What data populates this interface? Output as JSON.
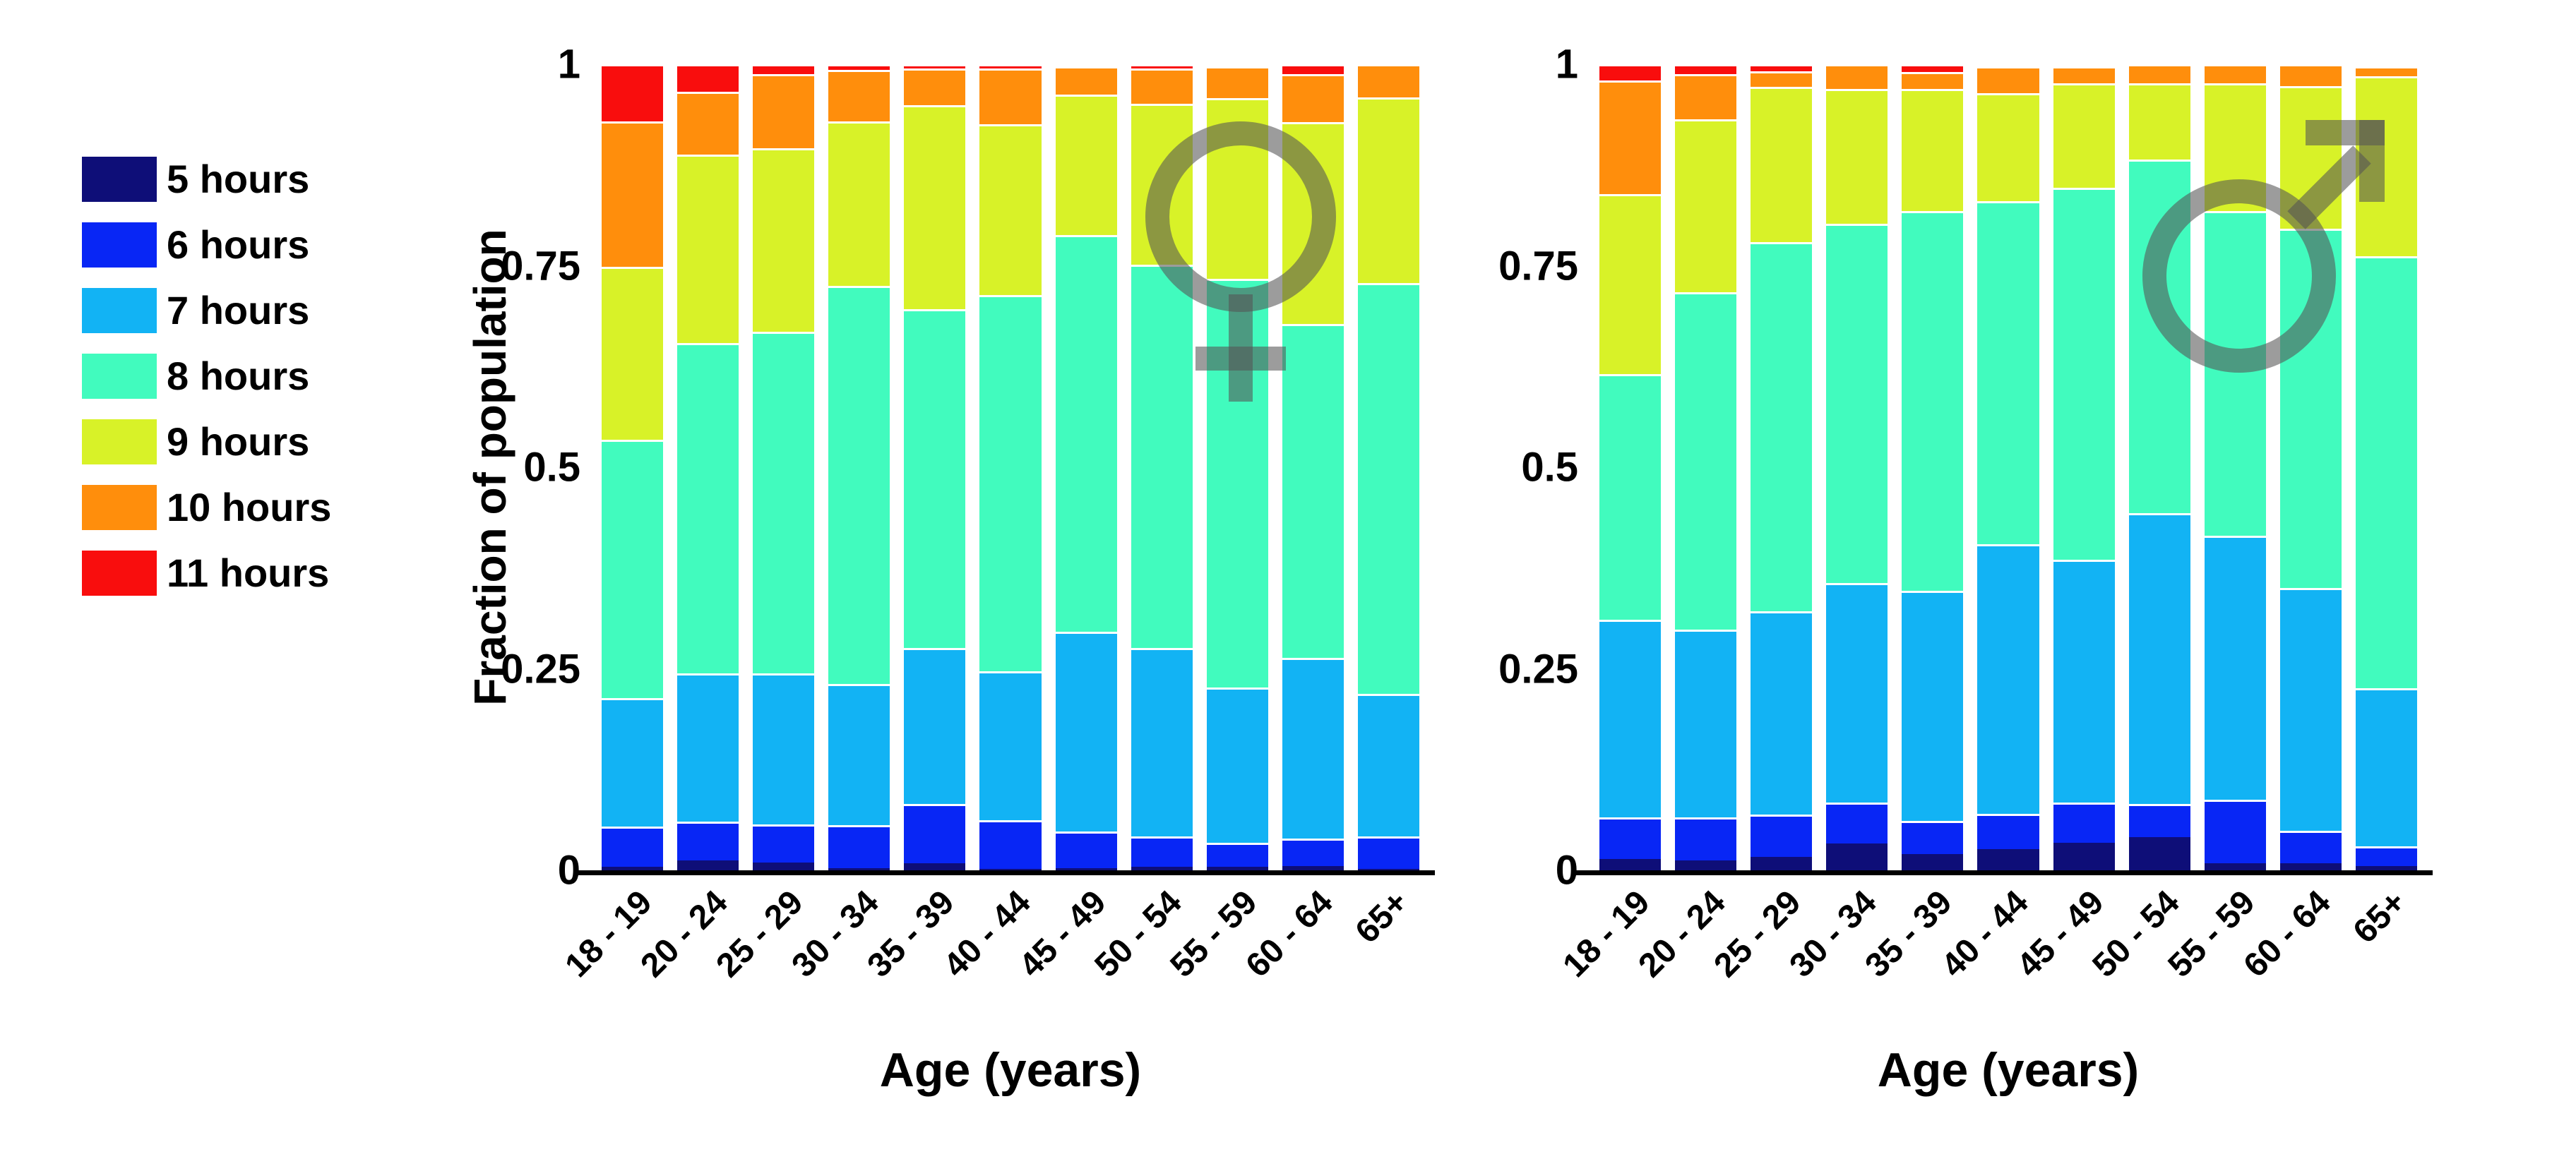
{
  "figure": {
    "background": "#ffffff",
    "axis_color": "#000000",
    "symbol_color": "rgba(85,85,85,0.58)"
  },
  "legend": {
    "position": "left",
    "items": [
      {
        "label": "5 hours",
        "color": "#0e0e78"
      },
      {
        "label": "6 hours",
        "color": "#0826f5"
      },
      {
        "label": "7 hours",
        "color": "#12b3f4"
      },
      {
        "label": "8 hours",
        "color": "#41fbbe"
      },
      {
        "label": "9 hours",
        "color": "#d8f228"
      },
      {
        "label": "10 hours",
        "color": "#ff8e0c"
      },
      {
        "label": "11 hours",
        "color": "#f90d0d"
      }
    ]
  },
  "chart_data": [
    {
      "type": "bar",
      "stacked": true,
      "panel": "female",
      "symbol": "female-sign",
      "xlabel": "Age (years)",
      "ylabel": "Fraction of population",
      "ylim": [
        0,
        1
      ],
      "grid": false,
      "yticks": [
        {
          "value": 0,
          "label": "0"
        },
        {
          "value": 0.25,
          "label": "0.25"
        },
        {
          "value": 0.5,
          "label": "0.5"
        },
        {
          "value": 0.75,
          "label": "0.75"
        },
        {
          "value": 1,
          "label": "1"
        }
      ],
      "categories": [
        "18 - 19",
        "20 - 24",
        "25 - 29",
        "30 - 34",
        "35 - 39",
        "40 - 44",
        "45 - 49",
        "50 - 54",
        "55 - 59",
        "60 - 64",
        "65+"
      ],
      "series": [
        {
          "name": "5 hours",
          "color": "#0e0e78",
          "values": [
            0.004,
            0.012,
            0.01,
            0.003,
            0.009,
            0.002,
            0.003,
            0.004,
            0.004,
            0.005,
            0.002
          ]
        },
        {
          "name": "6 hours",
          "color": "#0826f5",
          "values": [
            0.05,
            0.048,
            0.047,
            0.053,
            0.073,
            0.06,
            0.045,
            0.038,
            0.03,
            0.034,
            0.04
          ]
        },
        {
          "name": "7 hours",
          "color": "#12b3f4",
          "values": [
            0.16,
            0.184,
            0.187,
            0.175,
            0.194,
            0.185,
            0.248,
            0.234,
            0.193,
            0.225,
            0.177
          ]
        },
        {
          "name": "8 hours",
          "color": "#41fbbe",
          "values": [
            0.32,
            0.41,
            0.424,
            0.494,
            0.42,
            0.467,
            0.492,
            0.475,
            0.507,
            0.414,
            0.51
          ]
        },
        {
          "name": "9 hours",
          "color": "#d8f228",
          "values": [
            0.215,
            0.234,
            0.228,
            0.204,
            0.253,
            0.212,
            0.174,
            0.2,
            0.225,
            0.25,
            0.23
          ]
        },
        {
          "name": "10 hours",
          "color": "#ff8e0c",
          "values": [
            0.18,
            0.078,
            0.092,
            0.064,
            0.046,
            0.069,
            0.035,
            0.044,
            0.039,
            0.06,
            0.041
          ]
        },
        {
          "name": "11 hours",
          "color": "#f90d0d",
          "values": [
            0.071,
            0.034,
            0.012,
            0.007,
            0.005,
            0.005,
            0.003,
            0.005,
            0.002,
            0.012,
            0.0
          ]
        }
      ]
    },
    {
      "type": "bar",
      "stacked": true,
      "panel": "male",
      "symbol": "male-sign",
      "xlabel": "Age (years)",
      "ylabel": "",
      "ylim": [
        0,
        1
      ],
      "grid": false,
      "yticks": [
        {
          "value": 0,
          "label": "0"
        },
        {
          "value": 0.25,
          "label": "0.25"
        },
        {
          "value": 0.5,
          "label": "0.5"
        },
        {
          "value": 0.75,
          "label": "0.75"
        },
        {
          "value": 1,
          "label": "1"
        }
      ],
      "categories": [
        "18 - 19",
        "20 - 24",
        "25 - 29",
        "30 - 34",
        "35 - 39",
        "40 - 44",
        "45 - 49",
        "50 - 54",
        "55 - 59",
        "60 - 64",
        "65+"
      ],
      "series": [
        {
          "name": "5 hours",
          "color": "#0e0e78",
          "values": [
            0.014,
            0.012,
            0.017,
            0.033,
            0.02,
            0.026,
            0.034,
            0.041,
            0.009,
            0.009,
            0.005
          ]
        },
        {
          "name": "6 hours",
          "color": "#0826f5",
          "values": [
            0.052,
            0.054,
            0.052,
            0.051,
            0.041,
            0.044,
            0.05,
            0.041,
            0.079,
            0.04,
            0.025
          ]
        },
        {
          "name": "7 hours",
          "color": "#12b3f4",
          "values": [
            0.245,
            0.233,
            0.252,
            0.272,
            0.286,
            0.335,
            0.301,
            0.361,
            0.327,
            0.301,
            0.196
          ]
        },
        {
          "name": "8 hours",
          "color": "#41fbbe",
          "values": [
            0.305,
            0.418,
            0.458,
            0.446,
            0.471,
            0.426,
            0.462,
            0.439,
            0.403,
            0.446,
            0.536
          ]
        },
        {
          "name": "9 hours",
          "color": "#d8f228",
          "values": [
            0.223,
            0.215,
            0.193,
            0.167,
            0.151,
            0.134,
            0.129,
            0.094,
            0.158,
            0.177,
            0.223
          ]
        },
        {
          "name": "10 hours",
          "color": "#ff8e0c",
          "values": [
            0.141,
            0.056,
            0.019,
            0.031,
            0.021,
            0.033,
            0.021,
            0.024,
            0.024,
            0.027,
            0.012
          ]
        },
        {
          "name": "11 hours",
          "color": "#f90d0d",
          "values": [
            0.02,
            0.012,
            0.009,
            0.0,
            0.01,
            0.002,
            0.003,
            0.0,
            0.0,
            0.0,
            0.003
          ]
        }
      ]
    }
  ]
}
